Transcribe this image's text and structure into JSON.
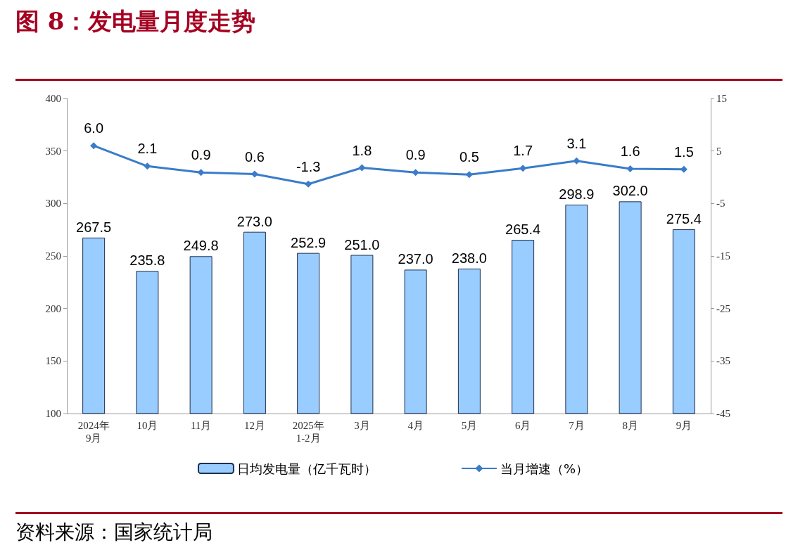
{
  "chart_data": {
    "type": "bar",
    "title": "图 8：发电量月度走势",
    "categories": [
      "2024年\n9月",
      "10月",
      "11月",
      "12月",
      "2025年\n1-2月",
      "3月",
      "4月",
      "5月",
      "6月",
      "7月",
      "8月",
      "9月"
    ],
    "series": [
      {
        "name": "日均发电量（亿千瓦时）",
        "color": "#99ccff",
        "values": [
          267.5,
          235.8,
          249.8,
          273,
          252.9,
          251,
          237,
          238,
          265.4,
          298.9,
          302,
          275.4
        ],
        "value_labels": [
          "267.5",
          "235.8",
          "249.8",
          "273.0",
          "252.9",
          "251.0",
          "237.0",
          "238.0",
          "265.4",
          "298.9",
          "302.0",
          "275.4"
        ]
      },
      {
        "name": "当月增速（%）",
        "type": "line",
        "axis": "y2",
        "color": "#3a7cc9",
        "values": [
          6,
          2.1,
          0.9,
          0.6,
          -1.3,
          1.8,
          0.9,
          0.5,
          1.7,
          3.1,
          1.6,
          1.5
        ],
        "value_labels": [
          "6.0",
          "2.1",
          "0.9",
          "0.6",
          "-1.3",
          "1.8",
          "0.9",
          "0.5",
          "1.7",
          "3.1",
          "1.6",
          "1.5"
        ]
      }
    ],
    "ylim": [
      100,
      400
    ],
    "yticks": [
      100,
      150,
      200,
      250,
      300,
      350,
      400
    ],
    "y2lim": [
      -45,
      15
    ],
    "y2ticks": [
      -45,
      -35,
      -25,
      -15,
      -5,
      5,
      15
    ],
    "grid": false,
    "legend": "bottom",
    "marker": "diamond",
    "line_style": "solid",
    "annotations": [
      "资料来源：国家统计局"
    ]
  }
}
